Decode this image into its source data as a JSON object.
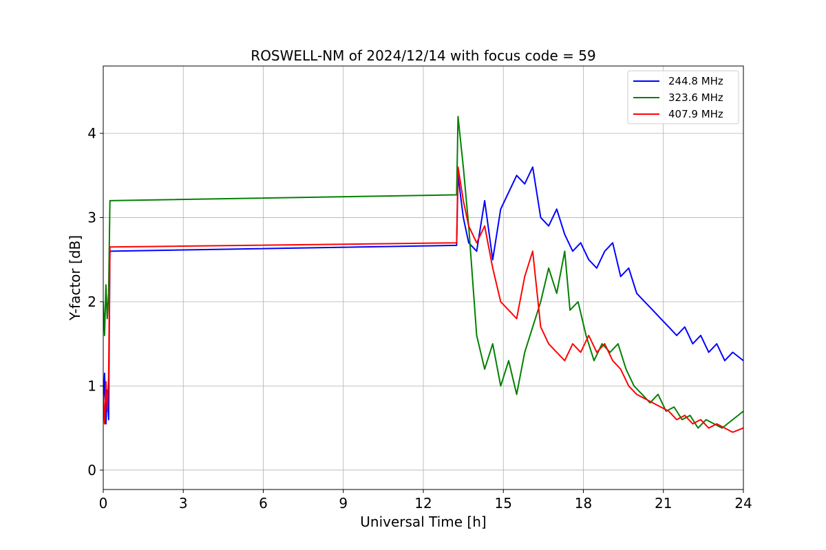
{
  "chart_data": {
    "type": "line",
    "title": "ROSWELL-NM of 2024/12/14 with focus code = 59",
    "xlabel": "Universal Time [h]",
    "ylabel": "Y-factor [dB]",
    "xlim": [
      0,
      24
    ],
    "ylim": [
      -0.23,
      4.8
    ],
    "xticks": [
      0,
      3,
      6,
      9,
      12,
      15,
      18,
      21,
      24
    ],
    "yticks": [
      0,
      1,
      2,
      3,
      4
    ],
    "grid": true,
    "legend_position": "top-right",
    "series": [
      {
        "name": "244.8 MHz",
        "color": "#0000ff",
        "points": [
          [
            0.0,
            0.75
          ],
          [
            0.05,
            1.15
          ],
          [
            0.1,
            0.55
          ],
          [
            0.15,
            0.95
          ],
          [
            0.2,
            0.6
          ],
          [
            0.25,
            2.6
          ],
          [
            13.25,
            2.67
          ],
          [
            13.3,
            3.5
          ],
          [
            13.5,
            3.0
          ],
          [
            13.7,
            2.7
          ],
          [
            14.0,
            2.6
          ],
          [
            14.3,
            3.2
          ],
          [
            14.6,
            2.5
          ],
          [
            14.9,
            3.1
          ],
          [
            15.2,
            3.3
          ],
          [
            15.5,
            3.5
          ],
          [
            15.8,
            3.4
          ],
          [
            16.1,
            3.6
          ],
          [
            16.4,
            3.0
          ],
          [
            16.7,
            2.9
          ],
          [
            17.0,
            3.1
          ],
          [
            17.3,
            2.8
          ],
          [
            17.6,
            2.6
          ],
          [
            17.9,
            2.7
          ],
          [
            18.2,
            2.5
          ],
          [
            18.5,
            2.4
          ],
          [
            18.8,
            2.6
          ],
          [
            19.1,
            2.7
          ],
          [
            19.4,
            2.3
          ],
          [
            19.7,
            2.4
          ],
          [
            20.0,
            2.1
          ],
          [
            20.3,
            2.0
          ],
          [
            20.6,
            1.9
          ],
          [
            20.9,
            1.8
          ],
          [
            21.2,
            1.7
          ],
          [
            21.5,
            1.6
          ],
          [
            21.8,
            1.7
          ],
          [
            22.1,
            1.5
          ],
          [
            22.4,
            1.6
          ],
          [
            22.7,
            1.4
          ],
          [
            23.0,
            1.5
          ],
          [
            23.3,
            1.3
          ],
          [
            23.6,
            1.4
          ],
          [
            24.0,
            1.3
          ]
        ]
      },
      {
        "name": "323.6 MHz",
        "color": "#008000",
        "points": [
          [
            0.0,
            2.0
          ],
          [
            0.05,
            1.6
          ],
          [
            0.1,
            2.2
          ],
          [
            0.15,
            1.8
          ],
          [
            0.2,
            2.1
          ],
          [
            0.25,
            3.2
          ],
          [
            13.25,
            3.27
          ],
          [
            13.3,
            4.2
          ],
          [
            13.5,
            3.6
          ],
          [
            13.7,
            2.9
          ],
          [
            14.0,
            1.6
          ],
          [
            14.3,
            1.2
          ],
          [
            14.6,
            1.5
          ],
          [
            14.9,
            1.0
          ],
          [
            15.2,
            1.3
          ],
          [
            15.5,
            0.9
          ],
          [
            15.8,
            1.4
          ],
          [
            16.1,
            1.7
          ],
          [
            16.4,
            2.0
          ],
          [
            16.7,
            2.4
          ],
          [
            17.0,
            2.1
          ],
          [
            17.3,
            2.6
          ],
          [
            17.5,
            1.9
          ],
          [
            17.8,
            2.0
          ],
          [
            18.1,
            1.6
          ],
          [
            18.4,
            1.3
          ],
          [
            18.7,
            1.5
          ],
          [
            19.0,
            1.4
          ],
          [
            19.3,
            1.5
          ],
          [
            19.6,
            1.2
          ],
          [
            19.9,
            1.0
          ],
          [
            20.2,
            0.9
          ],
          [
            20.5,
            0.8
          ],
          [
            20.8,
            0.9
          ],
          [
            21.1,
            0.7
          ],
          [
            21.4,
            0.75
          ],
          [
            21.7,
            0.6
          ],
          [
            22.0,
            0.65
          ],
          [
            22.3,
            0.5
          ],
          [
            22.6,
            0.6
          ],
          [
            22.9,
            0.55
          ],
          [
            23.2,
            0.5
          ],
          [
            23.6,
            0.6
          ],
          [
            24.0,
            0.7
          ]
        ]
      },
      {
        "name": "407.9 MHz",
        "color": "#ff0000",
        "points": [
          [
            0.0,
            0.9
          ],
          [
            0.05,
            0.55
          ],
          [
            0.1,
            1.05
          ],
          [
            0.15,
            0.7
          ],
          [
            0.2,
            1.1
          ],
          [
            0.25,
            2.65
          ],
          [
            13.25,
            2.7
          ],
          [
            13.3,
            3.6
          ],
          [
            13.5,
            3.2
          ],
          [
            13.7,
            2.9
          ],
          [
            14.0,
            2.7
          ],
          [
            14.3,
            2.9
          ],
          [
            14.6,
            2.4
          ],
          [
            14.9,
            2.0
          ],
          [
            15.2,
            1.9
          ],
          [
            15.5,
            1.8
          ],
          [
            15.8,
            2.3
          ],
          [
            16.1,
            2.6
          ],
          [
            16.4,
            1.7
          ],
          [
            16.7,
            1.5
          ],
          [
            17.0,
            1.4
          ],
          [
            17.3,
            1.3
          ],
          [
            17.6,
            1.5
          ],
          [
            17.9,
            1.4
          ],
          [
            18.2,
            1.6
          ],
          [
            18.5,
            1.4
          ],
          [
            18.8,
            1.5
          ],
          [
            19.1,
            1.3
          ],
          [
            19.4,
            1.2
          ],
          [
            19.7,
            1.0
          ],
          [
            20.0,
            0.9
          ],
          [
            20.3,
            0.85
          ],
          [
            20.6,
            0.8
          ],
          [
            20.9,
            0.75
          ],
          [
            21.2,
            0.7
          ],
          [
            21.5,
            0.6
          ],
          [
            21.8,
            0.65
          ],
          [
            22.1,
            0.55
          ],
          [
            22.4,
            0.6
          ],
          [
            22.7,
            0.5
          ],
          [
            23.0,
            0.55
          ],
          [
            23.3,
            0.5
          ],
          [
            23.6,
            0.45
          ],
          [
            24.0,
            0.5
          ]
        ]
      }
    ]
  }
}
